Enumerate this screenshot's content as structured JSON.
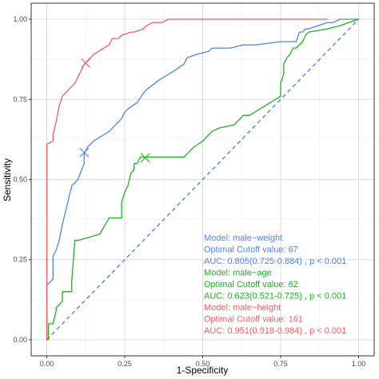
{
  "chart_data": {
    "type": "line",
    "title": "",
    "xlabel": "1-Specificity",
    "ylabel": "Sensitivity",
    "xlim": [
      -0.05,
      1.05
    ],
    "ylim": [
      -0.05,
      1.05
    ],
    "xticks": [
      0,
      0.25,
      0.5,
      0.75,
      1
    ],
    "xtick_labels": [
      "0.00",
      "0.25",
      "0.50",
      "0.75",
      "1.00"
    ],
    "yticks": [
      0,
      0.25,
      0.5,
      0.75,
      1
    ],
    "ytick_labels": [
      "0.00",
      "0.25",
      "0.50",
      "0.75",
      "1.00"
    ],
    "grid": true,
    "colors": {
      "weight": "#4f86d8",
      "age": "#1fae24",
      "height": "#ec5f5f",
      "panel_border": "#333333",
      "grid_major": "#dcdcdc",
      "grid_minor": "#eeeeee"
    },
    "reference_line": {
      "x": [
        0,
        1
      ],
      "y": [
        0,
        1
      ],
      "color": "#4f86d8",
      "style": "dashed"
    },
    "series": [
      {
        "key": "weight",
        "x": [
          0,
          0,
          0.02,
          0.02,
          0.03,
          0.04,
          0.05,
          0.06,
          0.07,
          0.08,
          0.1,
          0.12,
          0.12,
          0.13,
          0.15,
          0.2,
          0.22,
          0.24,
          0.25,
          0.26,
          0.29,
          0.31,
          0.32,
          0.36,
          0.41,
          0.44,
          0.45,
          0.48,
          0.52,
          0.53,
          0.59,
          0.63,
          0.65,
          0.67,
          0.75,
          0.8,
          0.81,
          0.82,
          0.83,
          0.84,
          0.87,
          0.9,
          0.92,
          0.94,
          0.96,
          1
        ],
        "y": [
          0,
          0.17,
          0.19,
          0.26,
          0.28,
          0.31,
          0.36,
          0.4,
          0.44,
          0.48,
          0.5,
          0.55,
          0.58,
          0.6,
          0.62,
          0.65,
          0.67,
          0.69,
          0.71,
          0.72,
          0.74,
          0.77,
          0.78,
          0.81,
          0.84,
          0.86,
          0.88,
          0.89,
          0.9,
          0.91,
          0.91,
          0.92,
          0.92,
          0.92,
          0.93,
          0.93,
          0.96,
          0.96,
          0.97,
          0.97,
          0.98,
          0.99,
          0.99,
          1,
          1,
          1
        ]
      },
      {
        "key": "age",
        "x": [
          0,
          0.005,
          0.005,
          0.02,
          0.03,
          0.03,
          0.05,
          0.05,
          0.08,
          0.08,
          0.09,
          0.1,
          0.17,
          0.2,
          0.24,
          0.24,
          0.25,
          0.26,
          0.27,
          0.28,
          0.28,
          0.29,
          0.3,
          0.31,
          0.32,
          0.35,
          0.44,
          0.47,
          0.5,
          0.53,
          0.55,
          0.6,
          0.63,
          0.64,
          0.65,
          0.7,
          0.75,
          0.75,
          0.76,
          0.76,
          0.77,
          0.78,
          0.79,
          0.8,
          0.82,
          0.83,
          0.84,
          0.9,
          0.94,
          1
        ],
        "y": [
          0,
          0,
          0.05,
          0.05,
          0.09,
          0.1,
          0.12,
          0.15,
          0.15,
          0.18,
          0.31,
          0.31,
          0.33,
          0.38,
          0.38,
          0.43,
          0.46,
          0.48,
          0.52,
          0.53,
          0.55,
          0.55,
          0.57,
          0.57,
          0.57,
          0.57,
          0.57,
          0.6,
          0.62,
          0.65,
          0.66,
          0.67,
          0.7,
          0.7,
          0.7,
          0.73,
          0.76,
          0.8,
          0.83,
          0.86,
          0.88,
          0.89,
          0.91,
          0.91,
          0.93,
          0.95,
          0.96,
          0.97,
          0.98,
          1
        ]
      },
      {
        "key": "height",
        "x": [
          0,
          0,
          0.02,
          0.02,
          0.03,
          0.04,
          0.05,
          0.06,
          0.07,
          0.09,
          0.1,
          0.12,
          0.13,
          0.15,
          0.2,
          0.21,
          0.23,
          0.24,
          0.27,
          0.28,
          0.31,
          0.32,
          0.34,
          0.35,
          0.37,
          0.39,
          0.4,
          0.9
        ],
        "y": [
          0,
          0.61,
          0.62,
          0.64,
          0.68,
          0.73,
          0.76,
          0.77,
          0.78,
          0.8,
          0.82,
          0.86,
          0.87,
          0.89,
          0.92,
          0.94,
          0.94,
          0.95,
          0.96,
          0.96,
          0.97,
          0.98,
          0.99,
          0.99,
          0.99,
          1,
          1,
          1
        ]
      }
    ],
    "optimal_points": [
      {
        "key": "weight",
        "x": 0.12,
        "y": 0.584
      },
      {
        "key": "age",
        "x": 0.316,
        "y": 0.568
      },
      {
        "key": "height",
        "x": 0.125,
        "y": 0.863
      }
    ],
    "annotations": [
      {
        "key": "weight",
        "lines": [
          "Model: male~weight",
          "Optimal Cutoff value:  67",
          " AUC:  0.805(0.725-0.884) , p < 0.001"
        ]
      },
      {
        "key": "age",
        "lines": [
          "Model: male~age",
          "Optimal Cutoff value:  62",
          " AUC:  0.623(0.521-0.725) , p < 0.001"
        ]
      },
      {
        "key": "height",
        "lines": [
          "Model: male~height",
          "Optimal Cutoff value:  161",
          " AUC:  0.951(0.918-0.984) , p < 0.001"
        ]
      }
    ]
  }
}
